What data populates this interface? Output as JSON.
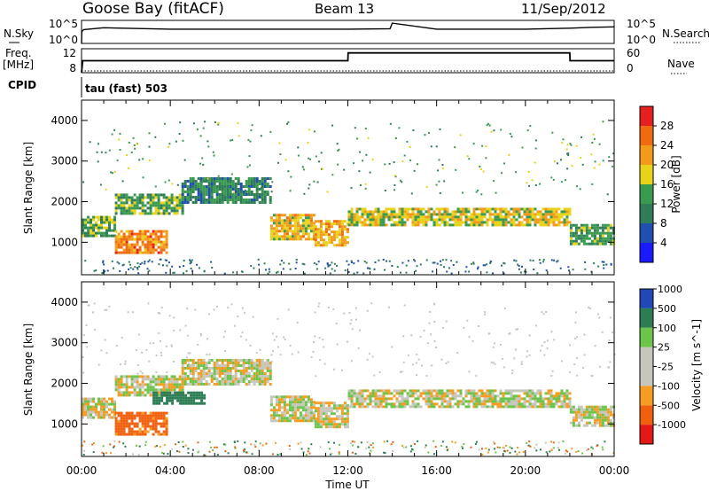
{
  "header": {
    "station": "Goose Bay (fitACF)",
    "beam": "Beam 13",
    "date": "11/Sep/2012"
  },
  "noise_panel": {
    "left_label": "N.Sky",
    "left_ticks": [
      "10^5",
      "10^0"
    ],
    "right_ticks": [
      "10^5",
      "10^0"
    ],
    "right_label": "N.Search"
  },
  "freq_panel": {
    "left_label_line1": "Freq.",
    "left_label_line2": "[MHz]",
    "left_ticks": [
      "12",
      "8"
    ],
    "right_ticks": [
      "60",
      "0"
    ],
    "right_label": "Nave"
  },
  "cpid": {
    "label": "CPID",
    "text": "tau (fast) 503"
  },
  "colors": {
    "power": [
      "#1a1aff",
      "#214fb0",
      "#2e7d58",
      "#3a9a50",
      "#e8d21a",
      "#f29a1a",
      "#f06a10",
      "#e62020"
    ],
    "velocity": [
      "#e51818",
      "#f0600f",
      "#f59c22",
      "#c6c6bd",
      "#c6c6bd",
      "#6cc44a",
      "#2c7d54",
      "#2049b5"
    ],
    "ground_scatter": "#c6c6bd"
  },
  "time_axis": {
    "label": "Time UT",
    "ticks": [
      "00:00",
      "04:00",
      "08:00",
      "12:00",
      "16:00",
      "20:00",
      "00:00"
    ]
  },
  "range_axis": {
    "label": "Slant Range [km]",
    "ticks": [
      "1000",
      "2000",
      "3000",
      "4000"
    ]
  },
  "power_scale": {
    "label": "Power [dB]",
    "ticks": [
      "4",
      "8",
      "12",
      "16",
      "20",
      "24",
      "28"
    ]
  },
  "velocity_scale": {
    "label": "Velocity [m s^-1]",
    "ticks": [
      "-1000",
      "-500",
      "-100",
      "-25",
      "25",
      "100",
      "500",
      "1000"
    ]
  },
  "chart_data": [
    {
      "type": "line",
      "panel": "noise",
      "series": [
        {
          "name": "N.Sky",
          "x": [
            0,
            0.01,
            0.1,
            1,
            4,
            8,
            12,
            13.9,
            14,
            16,
            20,
            22,
            23,
            24
          ],
          "y": [
            0,
            2.6,
            3.0,
            3.4,
            3.1,
            3.1,
            3.1,
            3.2,
            4.4,
            3.1,
            3.1,
            3.3,
            3.5,
            3.6
          ]
        }
      ],
      "xlim": [
        0,
        24
      ]
    },
    {
      "type": "line",
      "panel": "frequency",
      "series": [
        {
          "name": "Freq.",
          "x": [
            0,
            0.05,
            12,
            12.01,
            22,
            22.01,
            24
          ],
          "y": [
            8,
            10,
            10,
            11.3,
            11.3,
            10,
            10
          ]
        },
        {
          "name": "Nave",
          "x": [
            0,
            24
          ],
          "y": [
            0,
            0
          ]
        }
      ],
      "xlabel": "",
      "xlim": [
        0,
        24
      ]
    },
    {
      "type": "heatmap",
      "panel": "power",
      "xlabel": "Time UT",
      "ylabel": "Slant Range [km]",
      "xlim": [
        0,
        24
      ],
      "ylim": [
        200,
        4500
      ],
      "zlabel": "Power [dB]",
      "zlim": [
        0,
        32
      ],
      "regions": [
        {
          "t": [
            0,
            1.5
          ],
          "range": [
            1150,
            1650
          ],
          "value": 14
        },
        {
          "t": [
            1.5,
            3.8
          ],
          "range": [
            750,
            1300
          ],
          "value": 24
        },
        {
          "t": [
            1.5,
            4.5
          ],
          "range": [
            1700,
            2200
          ],
          "value": 14
        },
        {
          "t": [
            4.5,
            8.5
          ],
          "range": [
            1950,
            2600
          ],
          "value": 11
        },
        {
          "t": [
            8.5,
            10.5
          ],
          "range": [
            1100,
            1700
          ],
          "value": 20
        },
        {
          "t": [
            10.5,
            12
          ],
          "range": [
            950,
            1550
          ],
          "value": 21
        },
        {
          "t": [
            12,
            22
          ],
          "range": [
            1400,
            1850
          ],
          "value": 18
        },
        {
          "t": [
            22,
            24
          ],
          "range": [
            950,
            1450
          ],
          "value": 13
        }
      ]
    },
    {
      "type": "heatmap",
      "panel": "velocity",
      "xlabel": "Time UT",
      "ylabel": "Slant Range [km]",
      "xlim": [
        0,
        24
      ],
      "ylim": [
        200,
        4500
      ],
      "zlabel": "Velocity [m s^-1]",
      "zlim": [
        -1000,
        1000
      ],
      "regions": [
        {
          "t": [
            0,
            1.5
          ],
          "range": [
            1150,
            1650
          ],
          "value": 0
        },
        {
          "t": [
            1.5,
            3.8
          ],
          "range": [
            750,
            1300
          ],
          "value": -150
        },
        {
          "t": [
            1.5,
            4.5
          ],
          "range": [
            1700,
            2200
          ],
          "value": 0
        },
        {
          "t": [
            3.2,
            5.5
          ],
          "range": [
            1500,
            1800
          ],
          "value": 300
        },
        {
          "t": [
            4.5,
            8.5
          ],
          "range": [
            1950,
            2600
          ],
          "value": 0
        },
        {
          "t": [
            8.5,
            10.5
          ],
          "range": [
            1100,
            1700
          ],
          "value": 0
        },
        {
          "t": [
            10.5,
            12
          ],
          "range": [
            950,
            1550
          ],
          "value": 0
        },
        {
          "t": [
            12,
            22
          ],
          "range": [
            1400,
            1850
          ],
          "value": 0
        },
        {
          "t": [
            22,
            24
          ],
          "range": [
            950,
            1450
          ],
          "value": 0
        }
      ]
    }
  ]
}
